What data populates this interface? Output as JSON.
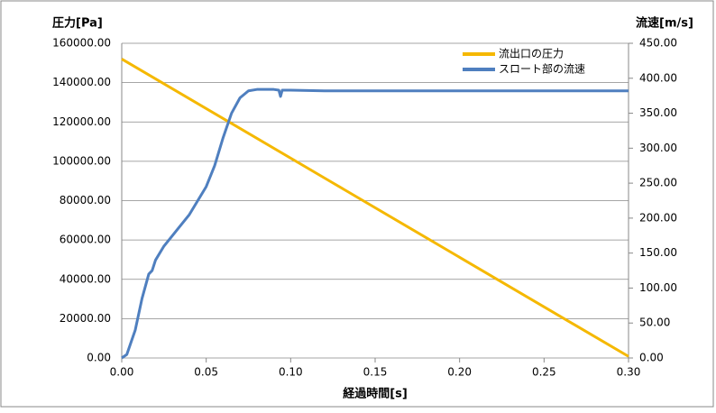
{
  "chart_data": {
    "type": "line",
    "ylabel": "圧力[Pa]",
    "y2label": "流速[m/s]",
    "xlabel": "経過時間[s]",
    "xlim": [
      0,
      0.3
    ],
    "xticks": [
      {
        "value": 0,
        "label": "0.00"
      },
      {
        "value": 0.05,
        "label": "0.05"
      },
      {
        "value": 0.1,
        "label": "0.10"
      },
      {
        "value": 0.15,
        "label": "0.15"
      },
      {
        "value": 0.2,
        "label": "0.20"
      },
      {
        "value": 0.25,
        "label": "0.25"
      },
      {
        "value": 0.3,
        "label": "0.30"
      }
    ],
    "ylim": [
      0,
      160000
    ],
    "yticks": [
      {
        "value": 0,
        "label": "0.00"
      },
      {
        "value": 20000,
        "label": "20000.00"
      },
      {
        "value": 40000,
        "label": "40000.00"
      },
      {
        "value": 60000,
        "label": "60000.00"
      },
      {
        "value": 80000,
        "label": "80000.00"
      },
      {
        "value": 100000,
        "label": "100000.00"
      },
      {
        "value": 120000,
        "label": "120000.00"
      },
      {
        "value": 140000,
        "label": "140000.00"
      },
      {
        "value": 160000,
        "label": "160000.00"
      }
    ],
    "y2lim": [
      0,
      450
    ],
    "y2ticks": [
      {
        "value": 0,
        "label": "0.00"
      },
      {
        "value": 50,
        "label": "50.00"
      },
      {
        "value": 100,
        "label": "100.00"
      },
      {
        "value": 150,
        "label": "150.00"
      },
      {
        "value": 200,
        "label": "200.00"
      },
      {
        "value": 250,
        "label": "250.00"
      },
      {
        "value": 300,
        "label": "300.00"
      },
      {
        "value": 350,
        "label": "350.00"
      },
      {
        "value": 400,
        "label": "400.00"
      },
      {
        "value": 450,
        "label": "450.00"
      }
    ],
    "grid": true,
    "legend": "upper right",
    "series": [
      {
        "name": "流出口の圧力",
        "color": "#f5b800",
        "x": [
          0,
          0.125,
          0.3
        ],
        "values": [
          152000,
          89000,
          800
        ]
      },
      {
        "name": "スロート部の流速",
        "color": "#4f7fbf",
        "axis": "y2",
        "x": [
          0,
          0.003,
          0.008,
          0.012,
          0.016,
          0.018,
          0.02,
          0.025,
          0.03,
          0.04,
          0.05,
          0.055,
          0.06,
          0.065,
          0.07,
          0.075,
          0.08,
          0.09,
          0.093,
          0.094,
          0.095,
          0.1,
          0.12,
          0.15,
          0.2,
          0.25,
          0.3
        ],
        "values": [
          0,
          5,
          40,
          85,
          120,
          125,
          140,
          160,
          175,
          205,
          245,
          275,
          315,
          350,
          372,
          382,
          384,
          384,
          383,
          374,
          383,
          383,
          382,
          382,
          382,
          382,
          382
        ]
      }
    ]
  }
}
